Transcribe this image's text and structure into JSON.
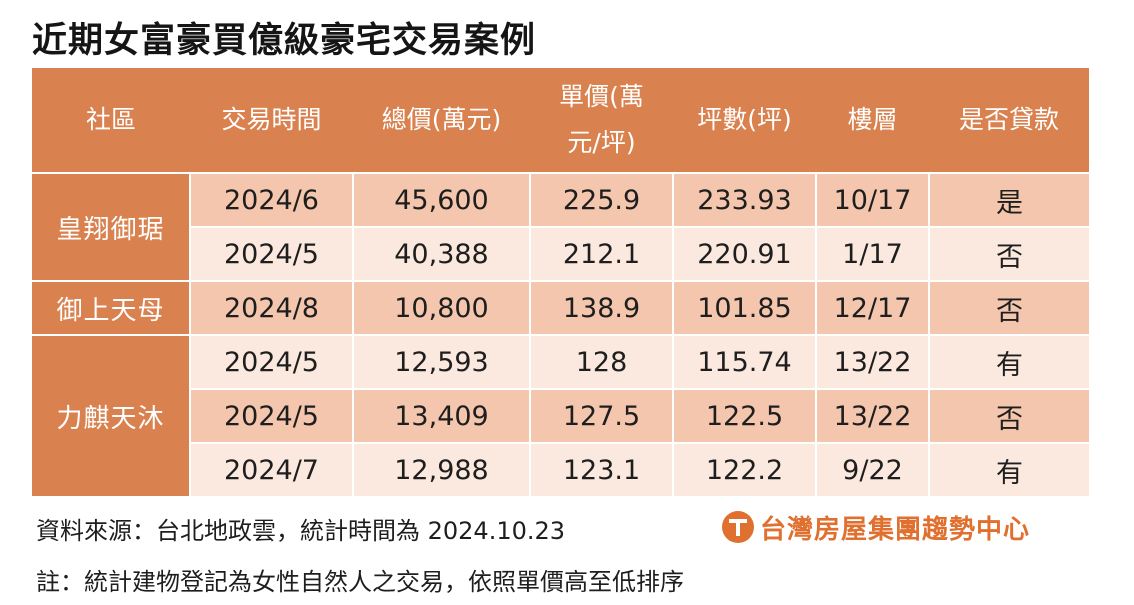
{
  "title": "近期女富豪買億級豪宅交易案例",
  "headers": {
    "community": "社區",
    "date": "交易時間",
    "total": "總價(萬元)",
    "unit_line1": "單價(萬",
    "unit_line2": "元/坪)",
    "area": "坪數(坪)",
    "floor": "樓層",
    "loan": "是否貸款"
  },
  "communities": [
    "皇翔御琚",
    "御上天母",
    "力麒天沐"
  ],
  "rows": [
    {
      "date": "2024/6",
      "total": "45,600",
      "unit": "225.9",
      "area": "233.93",
      "floor": "10/17",
      "loan": "是"
    },
    {
      "date": "2024/5",
      "total": "40,388",
      "unit": "212.1",
      "area": "220.91",
      "floor": "1/17",
      "loan": "否"
    },
    {
      "date": "2024/8",
      "total": "10,800",
      "unit": "138.9",
      "area": "101.85",
      "floor": "12/17",
      "loan": "否"
    },
    {
      "date": "2024/5",
      "total": "12,593",
      "unit": "128",
      "area": "115.74",
      "floor": "13/22",
      "loan": "有"
    },
    {
      "date": "2024/5",
      "total": "13,409",
      "unit": "127.5",
      "area": "122.5",
      "floor": "13/22",
      "loan": "否"
    },
    {
      "date": "2024/7",
      "total": "12,988",
      "unit": "123.1",
      "area": "122.2",
      "floor": "9/22",
      "loan": "有"
    }
  ],
  "source": "資料來源：台北地政雲，統計時間為 2024.10.23",
  "note": "註：統計建物登記為女性自然人之交易，依照單價高至低排序",
  "logo": "台灣房屋集團趨勢中心",
  "colors": {
    "header": "#d9814f",
    "row_dark": "#f4c6ae",
    "row_light": "#fbe9df",
    "logo": "#e0702f"
  }
}
